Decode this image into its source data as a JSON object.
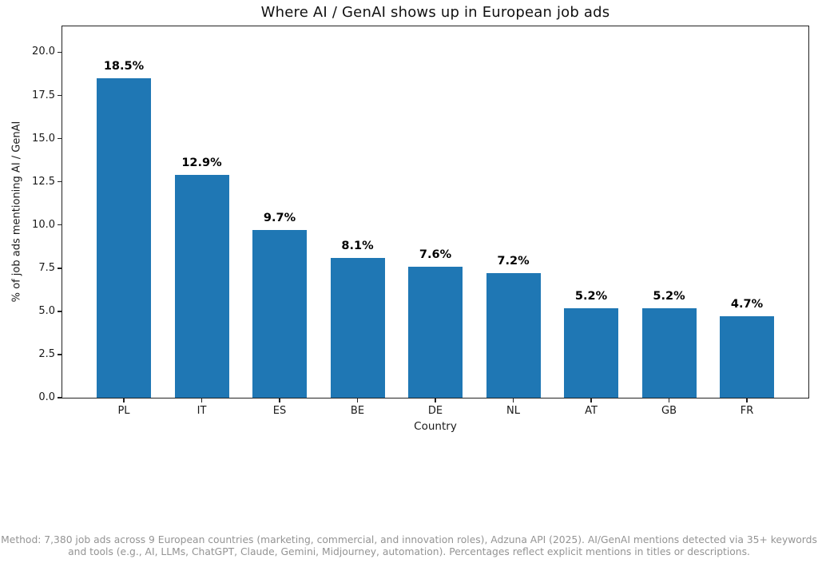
{
  "chart_data": {
    "type": "bar",
    "title": "Where AI / GenAI shows up in European job ads",
    "xlabel": "Country",
    "ylabel": "% of job ads mentioning AI / GenAI",
    "categories": [
      "PL",
      "IT",
      "ES",
      "BE",
      "DE",
      "NL",
      "AT",
      "GB",
      "FR"
    ],
    "values": [
      18.5,
      12.9,
      9.7,
      8.1,
      7.6,
      7.2,
      5.2,
      5.2,
      4.7
    ],
    "bar_labels": [
      "18.5%",
      "12.9%",
      "9.7%",
      "8.1%",
      "7.6%",
      "7.2%",
      "5.2%",
      "5.2%",
      "4.7%"
    ],
    "ylim": [
      0,
      21.5
    ],
    "yticks": [
      0.0,
      2.5,
      5.0,
      7.5,
      10.0,
      12.5,
      15.0,
      17.5,
      20.0
    ],
    "ytick_labels": [
      "0.0",
      "2.5",
      "5.0",
      "7.5",
      "10.0",
      "12.5",
      "15.0",
      "17.5",
      "20.0"
    ],
    "grid": false,
    "legend_position": "none",
    "bar_color": "#1f77b4"
  },
  "footer": {
    "line1": "Method: 7,380 job ads across 9 European countries (marketing, commercial, and innovation roles), Adzuna API (2025). AI/GenAI mentions detected via 35+ keywords",
    "line2": "and tools (e.g., AI, LLMs, ChatGPT, Claude, Gemini, Midjourney, automation). Percentages reflect explicit mentions in titles or descriptions.",
    "text_color": "#949494"
  },
  "colors": {
    "bar": "#1f77b4",
    "spine": "#222222",
    "title_text": "#111111",
    "tick_text": "#1a1a1a",
    "value_label_text": "#000000",
    "background": "#ffffff"
  }
}
